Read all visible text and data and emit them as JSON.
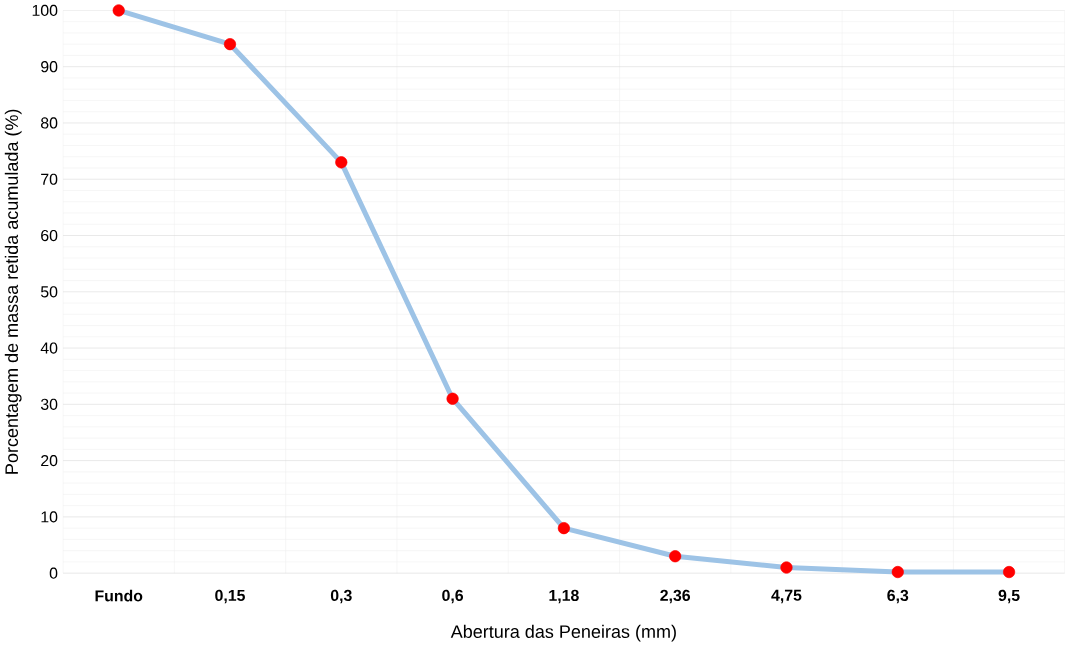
{
  "chart_data": {
    "type": "line",
    "xlabel": "Abertura  das Peneiras (mm)",
    "ylabel": "Porcentagem  de  massa retida acumulada (%)",
    "categories": [
      "Fundo",
      "0,15",
      "0,3",
      "0,6",
      "1,18",
      "2,36",
      "4,75",
      "6,3",
      "9,5"
    ],
    "series": [
      {
        "color": "#9dc3e6",
        "marker": "none",
        "values": [
          100,
          94,
          73,
          31,
          8,
          3,
          1,
          0.2,
          0.2
        ]
      },
      {
        "type": "scatter",
        "color": "#ff0000",
        "marker": "circle",
        "values": [
          100,
          94,
          73,
          31,
          8,
          3,
          1,
          0.2,
          0.2
        ]
      }
    ],
    "ylim": [
      0,
      100
    ],
    "yticks": [
      0,
      10,
      20,
      30,
      40,
      50,
      60,
      70,
      80,
      90,
      100
    ],
    "grid": true
  }
}
